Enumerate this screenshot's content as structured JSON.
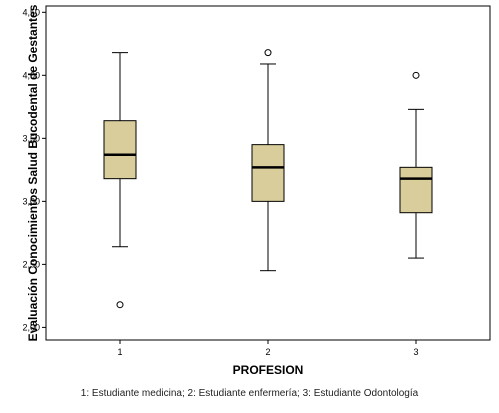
{
  "chart_data": {
    "type": "boxplot",
    "xlabel": "PROFESION",
    "ylabel": "Evaluación Conocimientos Salud Bucodental de Gestantes",
    "ylim": [
      1.9,
      4.55
    ],
    "yticks": [
      2.0,
      2.5,
      3.0,
      3.5,
      4.0,
      4.5
    ],
    "ytick_labels": [
      "2,00",
      "2,50",
      "3,00",
      "3,50",
      "4,00",
      "4,50"
    ],
    "categories": [
      "1",
      "2",
      "3"
    ],
    "boxes": [
      {
        "category": "1",
        "whisker_low": 2.64,
        "q1": 3.18,
        "median": 3.37,
        "q3": 3.64,
        "whisker_high": 4.18,
        "outliers": [
          2.18
        ]
      },
      {
        "category": "2",
        "whisker_low": 2.45,
        "q1": 3.0,
        "median": 3.27,
        "q3": 3.45,
        "whisker_high": 4.09,
        "outliers": [
          4.18
        ]
      },
      {
        "category": "3",
        "whisker_low": 2.55,
        "q1": 2.91,
        "median": 3.18,
        "q3": 3.27,
        "whisker_high": 3.73,
        "outliers": [
          4.0
        ]
      }
    ],
    "box_color": "#d9ce9b",
    "grid": false,
    "legend": "none"
  },
  "caption": "1: Estudiante medicina; 2: Estudiante enfermería; 3: Estudiante Odontología"
}
